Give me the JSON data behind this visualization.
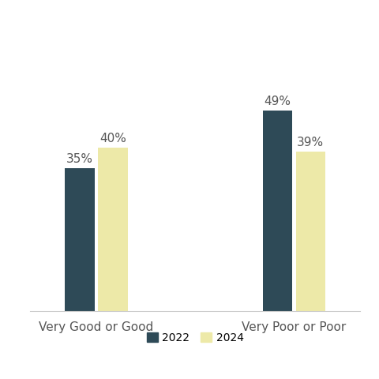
{
  "categories": [
    "Very Good or Good",
    "Very Poor or Poor"
  ],
  "series": {
    "2022": [
      35,
      49
    ],
    "2024": [
      40,
      39
    ]
  },
  "colors": {
    "2022": "#2e4a57",
    "2024": "#ede9a8"
  },
  "bar_width": 0.18,
  "group_centers": [
    1.0,
    2.2
  ],
  "label_fontsize": 11,
  "tick_fontsize": 11,
  "legend_fontsize": 10,
  "background_color": "#ffffff",
  "axis_color": "#cccccc",
  "text_color": "#555555",
  "label_format": "{}%",
  "ylim": [
    0,
    65
  ],
  "xlim": [
    0.6,
    2.6
  ]
}
